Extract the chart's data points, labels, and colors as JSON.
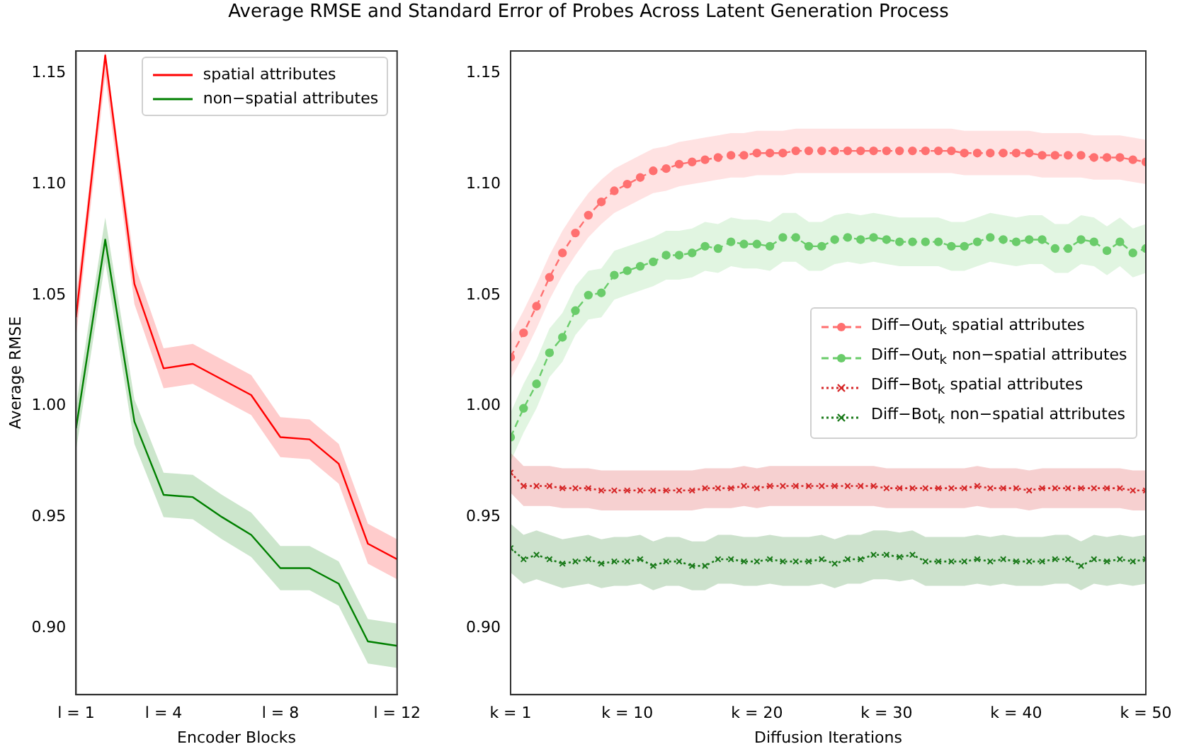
{
  "chart_data": [
    {
      "type": "line",
      "title": "Average RMSE and Standard Error of Probes Across Latent Generation Process",
      "xlabel": "Encoder Blocks",
      "ylabel": "Average RMSE",
      "x": [
        1,
        2,
        3,
        4,
        5,
        6,
        7,
        8,
        9,
        10,
        11,
        12
      ],
      "xlim": [
        1,
        12
      ],
      "xticks": [
        {
          "value": 1,
          "label": "l = 1"
        },
        {
          "value": 4,
          "label": "l = 4"
        },
        {
          "value": 8,
          "label": "l = 8"
        },
        {
          "value": 12,
          "label": "l = 12"
        }
      ],
      "ylim": [
        0.87,
        1.16
      ],
      "yticks": [
        {
          "value": 0.9,
          "label": "0.90"
        },
        0.95,
        {
          "value": 1,
          "label": "1.00"
        },
        1.05,
        {
          "value": 1.1,
          "label": "1.10"
        },
        1.15
      ],
      "grid": false,
      "legend": "top right",
      "marker": "none",
      "line_style": "solid",
      "series": [
        {
          "name": "spatial attributes",
          "color": "#ff0000",
          "values": [
            1.04,
            1.158,
            1.055,
            1.017,
            1.019,
            1.012,
            1.005,
            0.986,
            0.985,
            0.974,
            0.938,
            0.931
          ],
          "lower": [
            1.031,
            1.149,
            1.046,
            1.008,
            1.01,
            1.003,
            0.996,
            0.977,
            0.976,
            0.965,
            0.929,
            0.922
          ],
          "upper": [
            1.049,
            1.16,
            1.064,
            1.026,
            1.028,
            1.021,
            1.014,
            0.995,
            0.994,
            0.983,
            0.947,
            0.94
          ]
        },
        {
          "name": "non−spatial attributes",
          "color": "#008000",
          "values": [
            0.99,
            1.075,
            0.993,
            0.96,
            0.959,
            0.95,
            0.942,
            0.927,
            0.927,
            0.92,
            0.894,
            0.892
          ],
          "lower": [
            0.98,
            1.065,
            0.983,
            0.95,
            0.949,
            0.94,
            0.932,
            0.917,
            0.917,
            0.91,
            0.884,
            0.882
          ],
          "upper": [
            1.0,
            1.085,
            1.003,
            0.97,
            0.969,
            0.96,
            0.952,
            0.937,
            0.937,
            0.93,
            0.904,
            0.902
          ]
        }
      ]
    },
    {
      "type": "line",
      "xlabel": "Diffusion Iterations",
      "x": [
        1,
        2,
        3,
        4,
        5,
        6,
        7,
        8,
        9,
        10,
        11,
        12,
        13,
        14,
        15,
        16,
        17,
        18,
        19,
        20,
        21,
        22,
        23,
        24,
        25,
        26,
        27,
        28,
        29,
        30,
        31,
        32,
        33,
        34,
        35,
        36,
        37,
        38,
        39,
        40,
        41,
        42,
        43,
        44,
        45,
        46,
        47,
        48,
        49,
        50
      ],
      "xlim": [
        1,
        50
      ],
      "xticks": [
        {
          "value": 1,
          "label": "k = 1"
        },
        {
          "value": 10,
          "label": "k = 10"
        },
        {
          "value": 20,
          "label": "k = 20"
        },
        {
          "value": 30,
          "label": "k = 30"
        },
        {
          "value": 40,
          "label": "k = 40"
        },
        {
          "value": 50,
          "label": "k = 50"
        }
      ],
      "ylim": [
        0.87,
        1.16
      ],
      "yticks": [
        {
          "value": 0.9,
          "label": "0.90"
        },
        0.95,
        {
          "value": 1,
          "label": "1.00"
        },
        1.05,
        {
          "value": 1.1,
          "label": "1.10"
        },
        1.15
      ],
      "grid": false,
      "legend": "center right",
      "series": [
        {
          "name": "Diff−Out$_{k}$ spatial attributes",
          "color": "#ff7070",
          "marker": "circle",
          "line_style": "dashed",
          "values": [
            1.022,
            1.033,
            1.045,
            1.058,
            1.069,
            1.078,
            1.086,
            1.092,
            1.097,
            1.1,
            1.103,
            1.106,
            1.107,
            1.109,
            1.11,
            1.111,
            1.112,
            1.113,
            1.113,
            1.114,
            1.114,
            1.114,
            1.115,
            1.115,
            1.115,
            1.115,
            1.115,
            1.115,
            1.115,
            1.115,
            1.115,
            1.115,
            1.115,
            1.115,
            1.115,
            1.114,
            1.114,
            1.114,
            1.114,
            1.114,
            1.114,
            1.113,
            1.113,
            1.113,
            1.113,
            1.112,
            1.112,
            1.112,
            1.111,
            1.11
          ],
          "lower": [
            1.012,
            1.023,
            1.035,
            1.048,
            1.059,
            1.068,
            1.076,
            1.082,
            1.087,
            1.09,
            1.093,
            1.096,
            1.097,
            1.099,
            1.1,
            1.101,
            1.102,
            1.103,
            1.103,
            1.104,
            1.104,
            1.104,
            1.105,
            1.105,
            1.105,
            1.105,
            1.105,
            1.105,
            1.105,
            1.105,
            1.105,
            1.105,
            1.105,
            1.105,
            1.105,
            1.104,
            1.104,
            1.104,
            1.104,
            1.104,
            1.104,
            1.103,
            1.103,
            1.103,
            1.103,
            1.102,
            1.102,
            1.102,
            1.101,
            1.1
          ],
          "upper": [
            1.032,
            1.043,
            1.055,
            1.068,
            1.079,
            1.088,
            1.096,
            1.102,
            1.107,
            1.11,
            1.113,
            1.116,
            1.117,
            1.119,
            1.12,
            1.121,
            1.122,
            1.123,
            1.123,
            1.124,
            1.124,
            1.124,
            1.125,
            1.125,
            1.125,
            1.125,
            1.125,
            1.125,
            1.125,
            1.125,
            1.125,
            1.125,
            1.125,
            1.125,
            1.125,
            1.124,
            1.124,
            1.124,
            1.124,
            1.124,
            1.124,
            1.123,
            1.123,
            1.123,
            1.123,
            1.122,
            1.122,
            1.122,
            1.121,
            1.12
          ]
        },
        {
          "name": "Diff−Out$_{k}$ non−spatial attributes",
          "color": "#6acc6a",
          "marker": "circle",
          "line_style": "dashed",
          "values": [
            0.986,
            0.999,
            1.01,
            1.024,
            1.031,
            1.043,
            1.05,
            1.051,
            1.059,
            1.061,
            1.063,
            1.065,
            1.068,
            1.068,
            1.069,
            1.072,
            1.071,
            1.074,
            1.073,
            1.073,
            1.072,
            1.076,
            1.076,
            1.072,
            1.072,
            1.075,
            1.076,
            1.075,
            1.076,
            1.075,
            1.074,
            1.074,
            1.074,
            1.074,
            1.072,
            1.072,
            1.074,
            1.076,
            1.075,
            1.074,
            1.075,
            1.075,
            1.071,
            1.071,
            1.075,
            1.074,
            1.07,
            1.074,
            1.069,
            1.071
          ],
          "lower": [
            0.975,
            0.988,
            0.999,
            1.013,
            1.02,
            1.032,
            1.039,
            1.04,
            1.048,
            1.05,
            1.052,
            1.054,
            1.057,
            1.057,
            1.058,
            1.061,
            1.06,
            1.063,
            1.062,
            1.062,
            1.061,
            1.065,
            1.065,
            1.061,
            1.061,
            1.064,
            1.065,
            1.064,
            1.065,
            1.064,
            1.063,
            1.063,
            1.063,
            1.063,
            1.061,
            1.061,
            1.063,
            1.065,
            1.064,
            1.063,
            1.064,
            1.064,
            1.06,
            1.06,
            1.064,
            1.063,
            1.059,
            1.063,
            1.058,
            1.06
          ],
          "upper": [
            0.997,
            1.01,
            1.021,
            1.035,
            1.042,
            1.054,
            1.061,
            1.062,
            1.07,
            1.072,
            1.074,
            1.076,
            1.079,
            1.079,
            1.08,
            1.083,
            1.082,
            1.085,
            1.084,
            1.084,
            1.083,
            1.087,
            1.087,
            1.083,
            1.083,
            1.086,
            1.087,
            1.086,
            1.087,
            1.086,
            1.085,
            1.085,
            1.085,
            1.085,
            1.083,
            1.083,
            1.085,
            1.087,
            1.086,
            1.085,
            1.086,
            1.086,
            1.082,
            1.082,
            1.086,
            1.085,
            1.081,
            1.085,
            1.08,
            1.082
          ]
        },
        {
          "name": "Diff−Bot$_{k}$ spatial attributes",
          "color": "#d62728",
          "marker": "cross",
          "line_style": "dotted",
          "values": [
            0.97,
            0.964,
            0.964,
            0.964,
            0.963,
            0.963,
            0.963,
            0.962,
            0.962,
            0.962,
            0.962,
            0.962,
            0.962,
            0.962,
            0.962,
            0.963,
            0.963,
            0.963,
            0.964,
            0.963,
            0.964,
            0.964,
            0.964,
            0.964,
            0.964,
            0.964,
            0.964,
            0.964,
            0.964,
            0.963,
            0.963,
            0.963,
            0.963,
            0.963,
            0.963,
            0.963,
            0.964,
            0.963,
            0.963,
            0.963,
            0.962,
            0.963,
            0.963,
            0.963,
            0.963,
            0.963,
            0.963,
            0.963,
            0.962,
            0.962
          ],
          "lower": [
            0.961,
            0.955,
            0.955,
            0.955,
            0.954,
            0.954,
            0.954,
            0.953,
            0.953,
            0.953,
            0.953,
            0.953,
            0.953,
            0.953,
            0.953,
            0.954,
            0.954,
            0.954,
            0.955,
            0.954,
            0.955,
            0.955,
            0.955,
            0.955,
            0.955,
            0.955,
            0.955,
            0.955,
            0.955,
            0.954,
            0.954,
            0.954,
            0.954,
            0.954,
            0.954,
            0.954,
            0.955,
            0.954,
            0.954,
            0.954,
            0.953,
            0.954,
            0.954,
            0.954,
            0.954,
            0.954,
            0.954,
            0.954,
            0.953,
            0.953
          ],
          "upper": [
            0.979,
            0.973,
            0.973,
            0.973,
            0.972,
            0.972,
            0.972,
            0.971,
            0.971,
            0.971,
            0.971,
            0.971,
            0.971,
            0.971,
            0.971,
            0.972,
            0.972,
            0.972,
            0.973,
            0.972,
            0.973,
            0.973,
            0.973,
            0.973,
            0.973,
            0.973,
            0.973,
            0.973,
            0.973,
            0.972,
            0.972,
            0.972,
            0.972,
            0.972,
            0.972,
            0.972,
            0.973,
            0.972,
            0.972,
            0.972,
            0.971,
            0.972,
            0.972,
            0.972,
            0.972,
            0.972,
            0.972,
            0.972,
            0.971,
            0.971
          ]
        },
        {
          "name": "Diff−Bot$_{k}$ non−spatial attributes",
          "color": "#1a7a1a",
          "marker": "cross",
          "line_style": "dotted",
          "values": [
            0.936,
            0.931,
            0.933,
            0.931,
            0.929,
            0.93,
            0.931,
            0.929,
            0.93,
            0.93,
            0.931,
            0.928,
            0.93,
            0.93,
            0.928,
            0.928,
            0.931,
            0.931,
            0.93,
            0.93,
            0.931,
            0.93,
            0.93,
            0.93,
            0.931,
            0.929,
            0.931,
            0.931,
            0.933,
            0.933,
            0.932,
            0.933,
            0.93,
            0.93,
            0.93,
            0.93,
            0.931,
            0.93,
            0.931,
            0.93,
            0.93,
            0.93,
            0.931,
            0.931,
            0.928,
            0.931,
            0.93,
            0.931,
            0.93,
            0.931
          ],
          "lower": [
            0.925,
            0.92,
            0.922,
            0.92,
            0.918,
            0.919,
            0.92,
            0.918,
            0.919,
            0.919,
            0.92,
            0.917,
            0.919,
            0.919,
            0.917,
            0.917,
            0.92,
            0.92,
            0.919,
            0.919,
            0.92,
            0.919,
            0.919,
            0.919,
            0.92,
            0.918,
            0.92,
            0.92,
            0.922,
            0.922,
            0.921,
            0.922,
            0.919,
            0.919,
            0.919,
            0.919,
            0.92,
            0.919,
            0.92,
            0.919,
            0.919,
            0.919,
            0.92,
            0.92,
            0.917,
            0.92,
            0.919,
            0.92,
            0.919,
            0.92
          ],
          "upper": [
            0.947,
            0.942,
            0.944,
            0.942,
            0.94,
            0.941,
            0.942,
            0.94,
            0.941,
            0.941,
            0.942,
            0.939,
            0.941,
            0.941,
            0.939,
            0.939,
            0.942,
            0.942,
            0.941,
            0.941,
            0.942,
            0.941,
            0.941,
            0.941,
            0.942,
            0.94,
            0.942,
            0.942,
            0.944,
            0.944,
            0.943,
            0.944,
            0.941,
            0.941,
            0.941,
            0.941,
            0.942,
            0.941,
            0.942,
            0.941,
            0.941,
            0.941,
            0.942,
            0.942,
            0.939,
            0.942,
            0.941,
            0.942,
            0.941,
            0.942
          ]
        }
      ]
    }
  ]
}
